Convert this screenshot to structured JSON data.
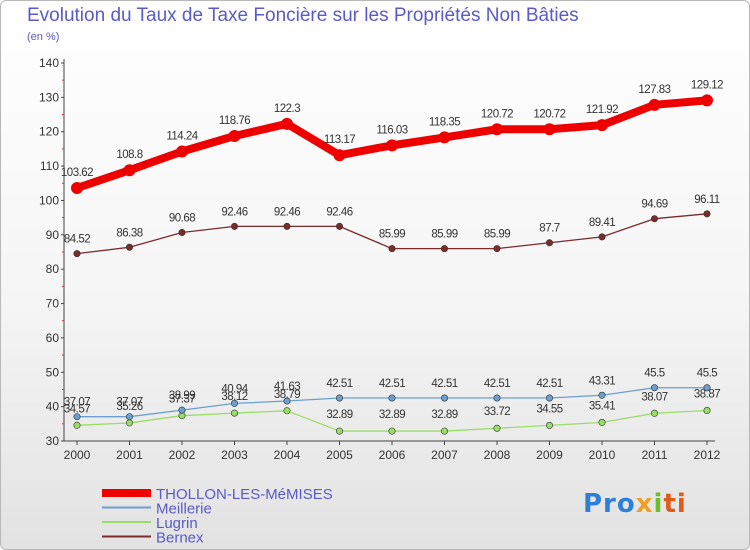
{
  "chart_data": {
    "type": "line",
    "title": "Evolution du Taux de Taxe Foncière sur les Propriétés Non Bâties",
    "subtitle": "(en %)",
    "x": [
      "2000",
      "2001",
      "2002",
      "2003",
      "2004",
      "2005",
      "2006",
      "2007",
      "2008",
      "2009",
      "2010",
      "2011",
      "2012"
    ],
    "ylim": [
      30,
      140
    ],
    "yticks": [
      30,
      40,
      50,
      60,
      70,
      80,
      90,
      100,
      110,
      120,
      130,
      140
    ],
    "grid": false,
    "legend_position": "bottom-left",
    "series": [
      {
        "name": "THOLLON-LES-MéMISES",
        "color": "#ee0000",
        "values": [
          103.62,
          108.8,
          114.24,
          118.76,
          122.3,
          113.17,
          116.03,
          118.35,
          120.72,
          120.72,
          121.92,
          127.83,
          129.12
        ],
        "labels": [
          "103.62",
          "108.8",
          "114.24",
          "118.76",
          "122.3",
          "113.17",
          "116.03",
          "118.35",
          "120.72",
          "120.72",
          "121.92",
          "127.83",
          "129.12"
        ]
      },
      {
        "name": "Meillerie",
        "color": "#6a9fcf",
        "values": [
          37.07,
          37.07,
          38.99,
          40.94,
          41.63,
          42.51,
          42.51,
          42.51,
          42.51,
          42.51,
          43.31,
          45.5,
          45.5
        ],
        "labels": [
          "37.07",
          "37.07",
          "38.99",
          "40.94",
          "41.63",
          "42.51",
          "42.51",
          "42.51",
          "42.51",
          "42.51",
          "43.31",
          "45.5",
          "45.5"
        ]
      },
      {
        "name": "Lugrin",
        "color": "#99dd66",
        "values": [
          34.57,
          35.26,
          37.37,
          38.12,
          38.79,
          32.89,
          32.89,
          32.89,
          33.72,
          34.55,
          35.41,
          38.07,
          38.87
        ],
        "labels": [
          "34.57",
          "35.26",
          "37.37",
          "38.12",
          "38.79",
          "32.89",
          "32.89",
          "32.89",
          "33.72",
          "34.55",
          "35.41",
          "38.07",
          "38.87"
        ]
      },
      {
        "name": "Bernex",
        "color": "#7a2b2b",
        "values": [
          84.52,
          86.38,
          90.68,
          92.46,
          92.46,
          92.46,
          85.99,
          85.99,
          85.99,
          87.7,
          89.41,
          94.69,
          96.11
        ],
        "labels": [
          "84.52",
          "86.38",
          "90.68",
          "92.46",
          "92.46",
          "92.46",
          "85.99",
          "85.99",
          "85.99",
          "87.7",
          "89.41",
          "94.69",
          "96.11"
        ]
      }
    ]
  },
  "logo": {
    "text_1": "Pro",
    "text_2": "x",
    "text_3": "i",
    "text_4": "ti"
  }
}
